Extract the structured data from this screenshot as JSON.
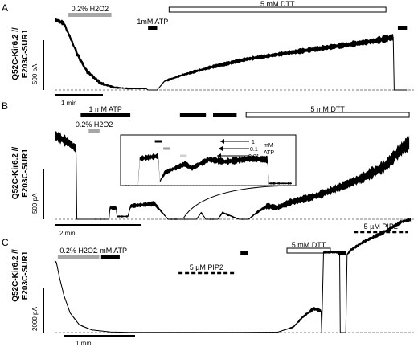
{
  "chart_data": [
    {
      "type": "line",
      "panel_label": "A",
      "ylabel": "Q52C-Kir6.2 // E203C-SUR1",
      "scale_bars": {
        "current": "500 pA",
        "time": "1 min"
      },
      "treatments": [
        {
          "label": "0.2% H2O2",
          "style": "gray",
          "start": 0.15,
          "end": 0.62
        },
        {
          "label": "1mM ATP",
          "style": "black",
          "start": 1.02,
          "end": 1.12
        },
        {
          "label": "5 mM DTT",
          "style": "open",
          "start": 1.25,
          "end": 3.62
        },
        {
          "label": "",
          "style": "black",
          "start": 3.75,
          "end": 3.85
        }
      ],
      "x_unit": "min",
      "y_unit": "pA",
      "trace": {
        "x": [
          0,
          0.1,
          0.18,
          0.25,
          0.35,
          0.5,
          0.65,
          0.85,
          1.0,
          1.02,
          1.12,
          1.2,
          1.4,
          1.7,
          2.1,
          2.6,
          3.1,
          3.5,
          3.7,
          3.71,
          3.85
        ],
        "y": [
          1120,
          1060,
          800,
          560,
          300,
          110,
          40,
          20,
          20,
          0,
          0,
          140,
          240,
          360,
          490,
          600,
          700,
          780,
          840,
          0,
          0
        ],
        "noise": [
          40,
          40,
          50,
          50,
          40,
          30,
          20,
          10,
          10,
          0,
          0,
          20,
          25,
          30,
          35,
          40,
          45,
          55,
          60,
          0,
          0
        ]
      },
      "x_range": [
        0,
        3.9
      ],
      "y_range": [
        -60,
        1200
      ]
    },
    {
      "type": "line",
      "panel_label": "B",
      "ylabel": "Q52C-Kir6.2 // E203C-SUR1",
      "scale_bars": {
        "current": "500 pA",
        "time": "2 min"
      },
      "treatments": [
        {
          "label": "1 mM ATP",
          "style": "black",
          "start": 0.55,
          "end": 1.6
        },
        {
          "label": "0.2% H2O2",
          "style": "gray",
          "start": 0.72,
          "end": 0.95
        },
        {
          "label": "",
          "style": "black",
          "start": 2.65,
          "end": 3.2
        },
        {
          "label": "",
          "style": "black",
          "start": 3.35,
          "end": 3.85
        },
        {
          "label": "5 mM DTT",
          "style": "open",
          "start": 4.05,
          "end": 7.5
        }
      ],
      "x_unit": "min",
      "y_unit": "pA",
      "trace": {
        "x": [
          0,
          0.3,
          0.45,
          0.47,
          0.9,
          1.0,
          1.15,
          1.17,
          1.3,
          1.32,
          1.55,
          1.6,
          1.62,
          2.05,
          2.1,
          2.4,
          3.0,
          3.1,
          3.2,
          3.45,
          3.55,
          3.9,
          4.1,
          4.3,
          4.5,
          4.7,
          5.0,
          5.5,
          6.0,
          6.5,
          7.0,
          7.3,
          7.5
        ],
        "y": [
          880,
          800,
          740,
          0,
          0,
          0,
          0,
          120,
          120,
          30,
          30,
          130,
          140,
          160,
          170,
          0,
          0,
          70,
          0,
          0,
          70,
          0,
          0,
          80,
          140,
          120,
          180,
          240,
          330,
          430,
          560,
          720,
          800
        ],
        "noise": [
          60,
          50,
          50,
          0,
          5,
          5,
          5,
          20,
          20,
          10,
          10,
          20,
          20,
          25,
          25,
          5,
          5,
          15,
          5,
          5,
          15,
          5,
          5,
          15,
          30,
          30,
          35,
          40,
          45,
          55,
          65,
          75,
          80
        ]
      },
      "x_range": [
        0,
        7.55
      ],
      "y_range": [
        -40,
        1000
      ],
      "inset": {
        "legend": [
          {
            "label": "1"
          },
          {
            "label": "0.1"
          },
          {
            "label": "0.01"
          }
        ],
        "legend_units": [
          "mM",
          "ATP"
        ],
        "bars": [
          {
            "style": "black",
            "start": 0.18,
            "end": 0.22
          },
          {
            "style": "gray",
            "start": 0.23,
            "end": 0.27
          },
          {
            "style": "lightgray",
            "start": 0.33,
            "end": 0.37
          }
        ],
        "trace": {
          "x": [
            0,
            0.08,
            0.09,
            0.2,
            0.21,
            0.24,
            0.3,
            0.36,
            0.4,
            0.5,
            0.6,
            0.75,
            0.85,
            0.86,
            1.0
          ],
          "y": [
            0,
            0,
            0.62,
            0.68,
            0.1,
            0.3,
            0.4,
            0.5,
            0.4,
            0.6,
            0.55,
            0.62,
            0.6,
            0.05,
            0.05
          ],
          "noise": [
            0.01,
            0.01,
            0.06,
            0.06,
            0.03,
            0.05,
            0.05,
            0.06,
            0.05,
            0.07,
            0.07,
            0.07,
            0.07,
            0.02,
            0.02
          ]
        }
      }
    },
    {
      "type": "line",
      "panel_label": "C",
      "ylabel": "Q52C-Kir6.2 // E203C-SUR1",
      "scale_bars": {
        "current": "2000 pA",
        "time": "1 min"
      },
      "treatments": [
        {
          "label": "0.2% H2O2",
          "style": "gray",
          "start": 0.05,
          "end": 0.72
        },
        {
          "label": "1 mM ATP",
          "style": "black",
          "start": 0.75,
          "end": 1.05
        },
        {
          "label": "5 µM PIP2",
          "style": "dashed",
          "start": 2.0,
          "end": 2.9
        },
        {
          "label": "",
          "style": "black",
          "start": 3.0,
          "end": 3.12
        },
        {
          "label": "5 mM DTT",
          "style": "open",
          "start": 3.75,
          "end": 4.45
        },
        {
          "label": "",
          "style": "black",
          "start": 4.58,
          "end": 4.7
        },
        {
          "label": "5 µM PIP2",
          "style": "dashed",
          "start": 4.83,
          "end": 5.7
        }
      ],
      "x_unit": "min",
      "y_unit": "pA",
      "trace": {
        "x": [
          0,
          0.03,
          0.08,
          0.15,
          0.25,
          0.4,
          0.6,
          0.9,
          1.2,
          2.0,
          3.0,
          3.6,
          3.85,
          4.0,
          4.18,
          4.3,
          4.31,
          4.34,
          4.36,
          4.55,
          4.6,
          4.61,
          4.7,
          4.72,
          4.78,
          5.0,
          5.3,
          5.6,
          5.75
        ],
        "y": [
          3300,
          3200,
          2500,
          1700,
          900,
          350,
          120,
          30,
          10,
          10,
          10,
          20,
          250,
          700,
          1100,
          1000,
          0,
          3700,
          3700,
          3700,
          3700,
          0,
          0,
          3600,
          3800,
          4200,
          4600,
          5100,
          5200
        ],
        "noise": [
          60,
          60,
          50,
          50,
          40,
          25,
          15,
          8,
          5,
          5,
          5,
          8,
          40,
          70,
          90,
          90,
          0,
          60,
          60,
          60,
          60,
          0,
          0,
          60,
          70,
          80,
          90,
          90,
          90
        ]
      },
      "x_range": [
        0,
        5.8
      ],
      "y_range": [
        -100,
        5400
      ]
    }
  ]
}
